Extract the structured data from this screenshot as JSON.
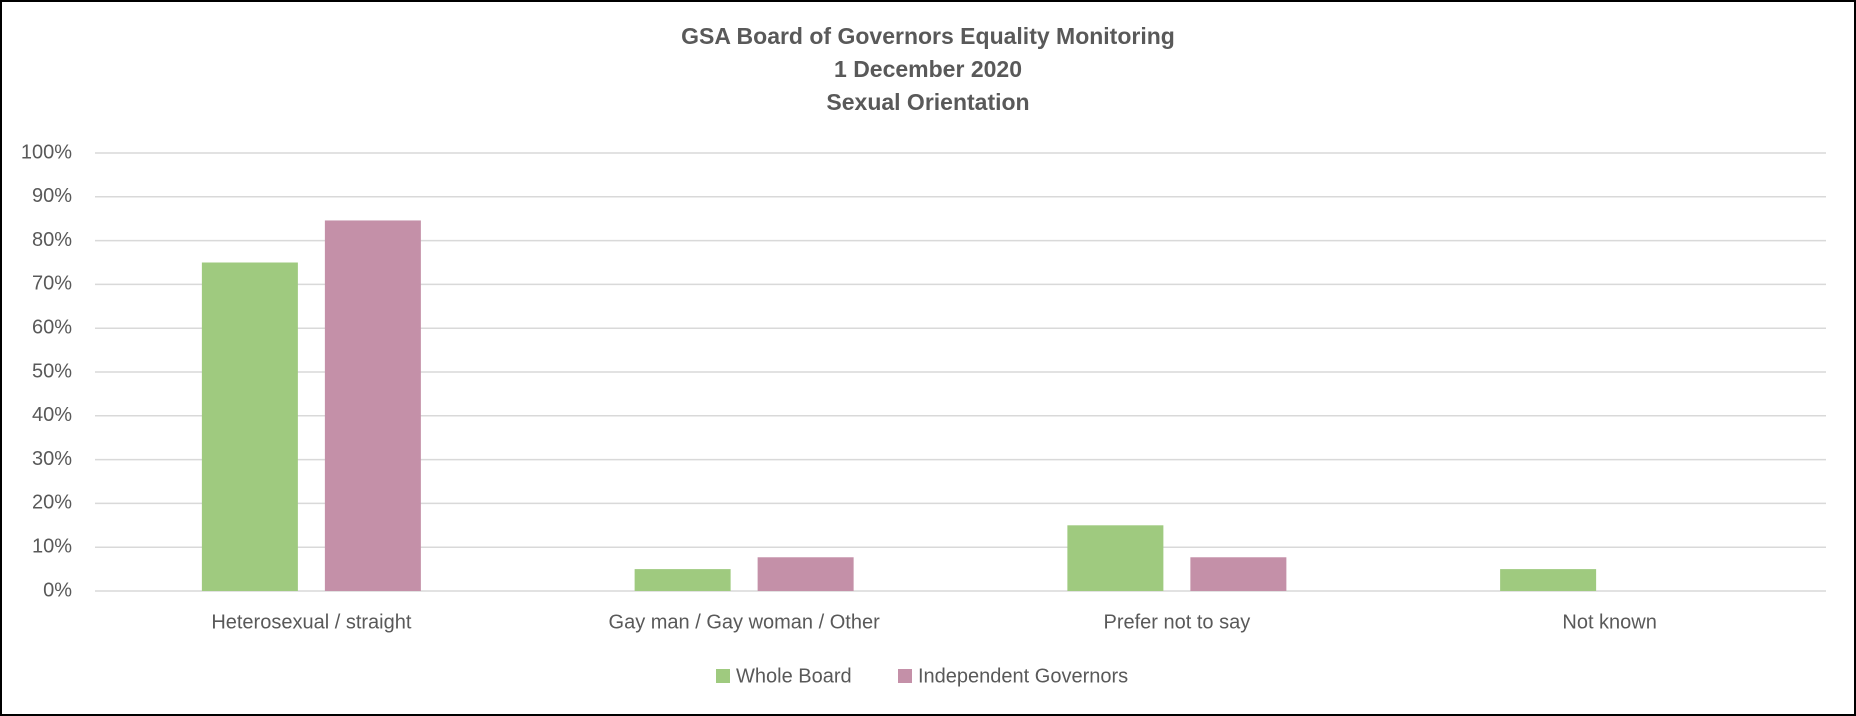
{
  "chart_data": {
    "type": "bar",
    "title": [
      "GSA Board of Governors Equality Monitoring",
      "1 December 2020",
      "Sexual Orientation"
    ],
    "categories": [
      "Heterosexual / straight",
      "Gay man / Gay woman / Other",
      "Prefer not to say",
      "Not known"
    ],
    "series": [
      {
        "name": "Whole Board",
        "color": "#9fca7f",
        "values": [
          75,
          5,
          15,
          5
        ]
      },
      {
        "name": "Independent Governors",
        "color": "#c490a8",
        "values": [
          84.6,
          7.7,
          7.7,
          0
        ]
      }
    ],
    "ylim": [
      0,
      100
    ],
    "yticks": [
      {
        "value": 0,
        "label": "0%"
      },
      {
        "value": 10,
        "label": "10%"
      },
      {
        "value": 20,
        "label": "20%"
      },
      {
        "value": 30,
        "label": "30%"
      },
      {
        "value": 40,
        "label": "40%"
      },
      {
        "value": 50,
        "label": "50%"
      },
      {
        "value": 60,
        "label": "60%"
      },
      {
        "value": 70,
        "label": "70%"
      },
      {
        "value": 80,
        "label": "80%"
      },
      {
        "value": 90,
        "label": "90%"
      },
      {
        "value": 100,
        "label": "100%"
      }
    ],
    "grid": true,
    "legend": "bottom"
  }
}
